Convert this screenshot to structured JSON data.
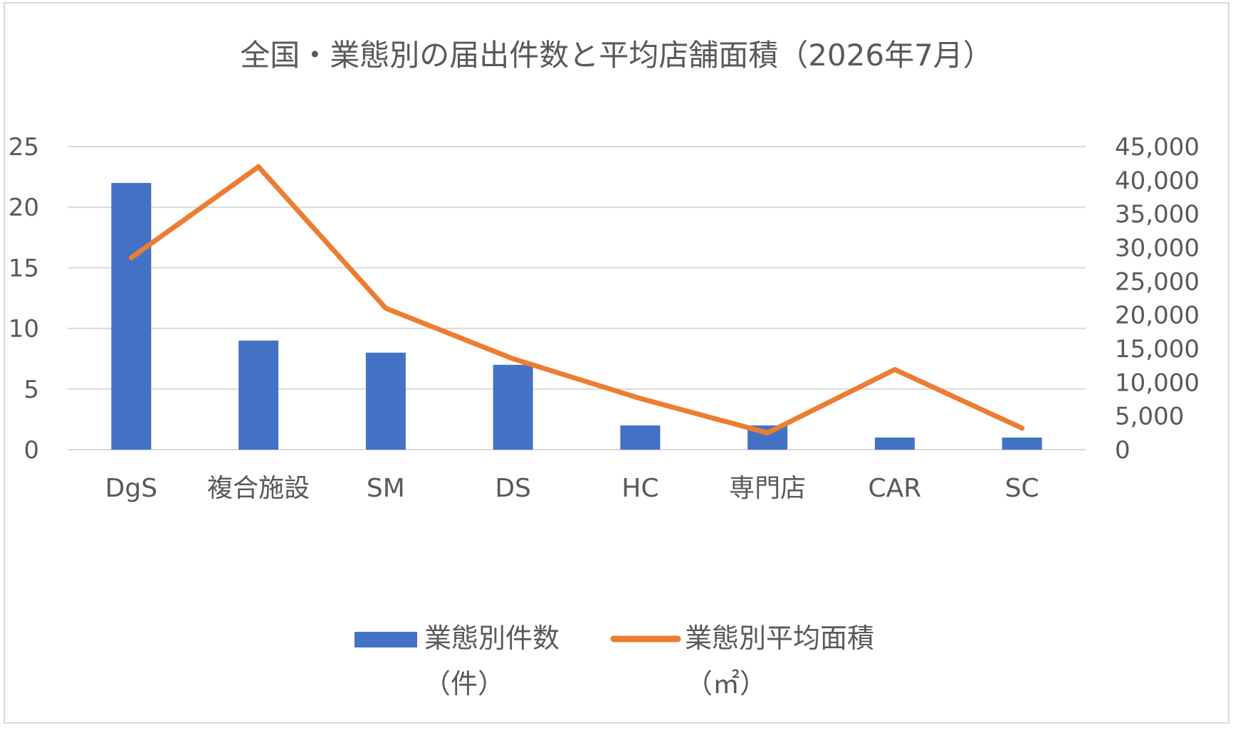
{
  "chart_data": {
    "type": "bar",
    "title": "全国・業態別の届出件数と平均店舗面積（2026年7月）",
    "categories": [
      "DgS",
      "複合施設",
      "SM",
      "DS",
      "HC",
      "専門店",
      "CAR",
      "SC"
    ],
    "series": [
      {
        "name": "業態別件数",
        "unit_label": "（件）",
        "type": "bar",
        "axis": "left",
        "color": "#4472C4",
        "values": [
          22,
          9,
          8,
          7,
          2,
          2,
          1,
          1
        ]
      },
      {
        "name": "業態別平均面積",
        "unit_label": "（㎡）",
        "type": "line",
        "axis": "right",
        "color": "#ED7D31",
        "values": [
          28500,
          42000,
          21000,
          13500,
          7600,
          2500,
          11900,
          3200
        ]
      }
    ],
    "y_left": {
      "min": 0,
      "max": 25,
      "ticks": [
        "0",
        "5",
        "10",
        "15",
        "20",
        "25"
      ]
    },
    "y_right": {
      "min": 0,
      "max": 45000,
      "ticks": [
        "0",
        "5,000",
        "10,000",
        "15,000",
        "20,000",
        "25,000",
        "30,000",
        "35,000",
        "40,000",
        "45,000"
      ]
    },
    "grid": true,
    "legend_position": "bottom",
    "colors": {
      "grid": "#D9D9D9",
      "text": "#595959",
      "frame": "#D9D9D9"
    }
  }
}
